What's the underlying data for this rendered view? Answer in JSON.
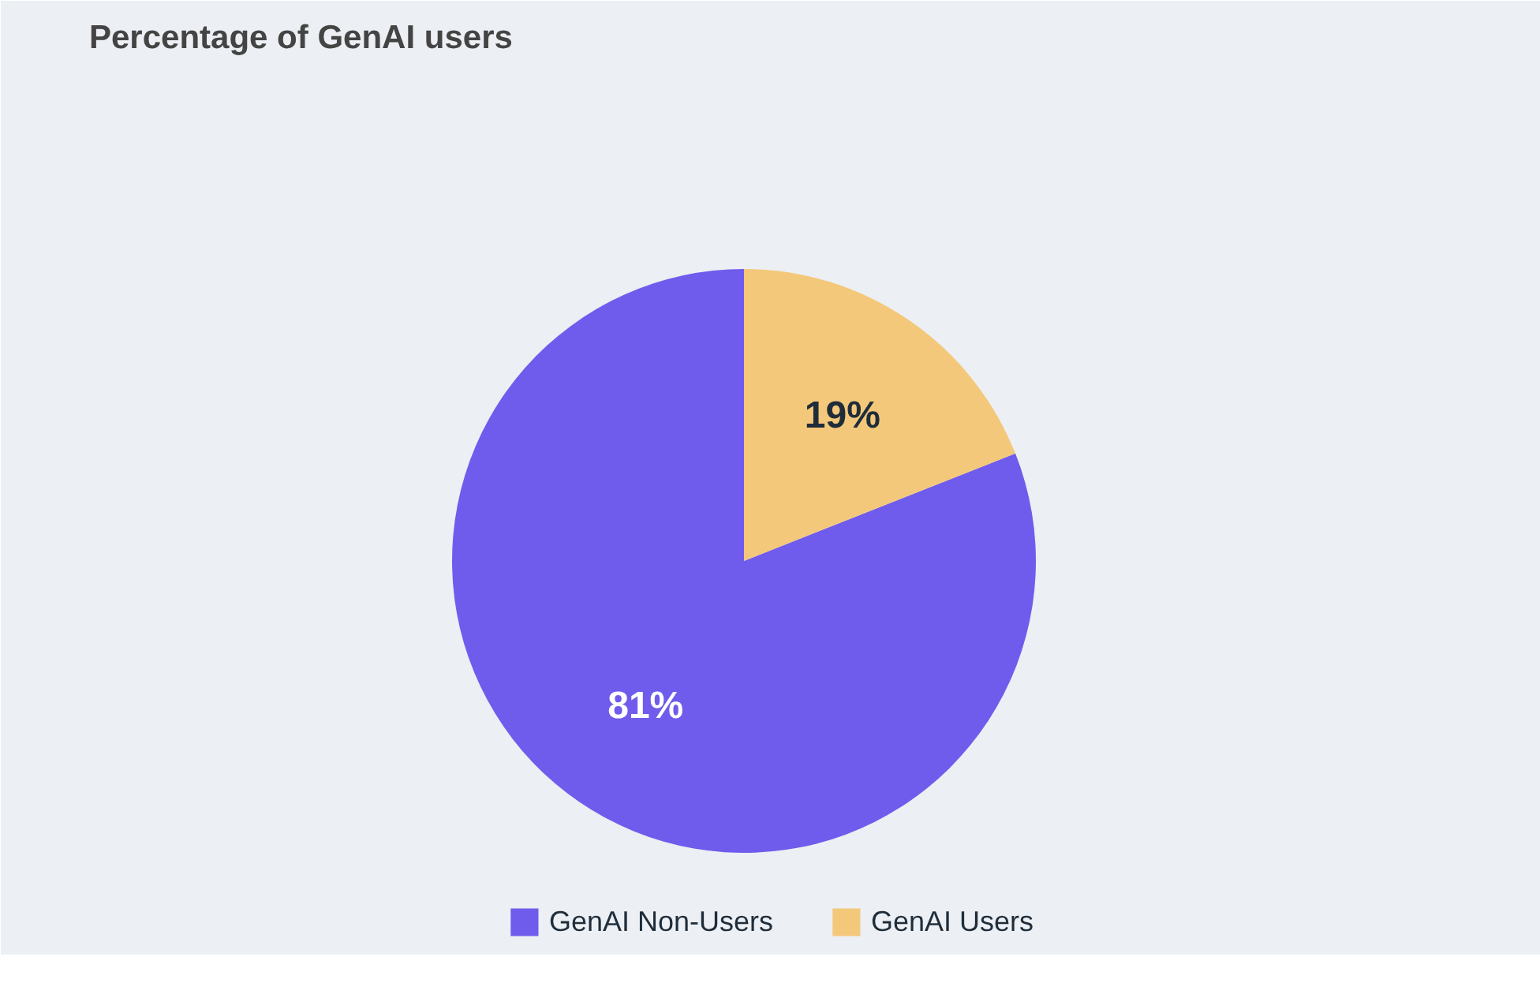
{
  "chart_data": {
    "type": "pie",
    "title": "Percentage of GenAI users",
    "categories": [
      "GenAI Non-Users",
      "GenAI Users"
    ],
    "values": [
      81,
      19
    ],
    "colors": [
      "#6f5cec",
      "#f4c87a"
    ],
    "value_labels": [
      "81%",
      "19%"
    ],
    "legend": "bottom"
  }
}
